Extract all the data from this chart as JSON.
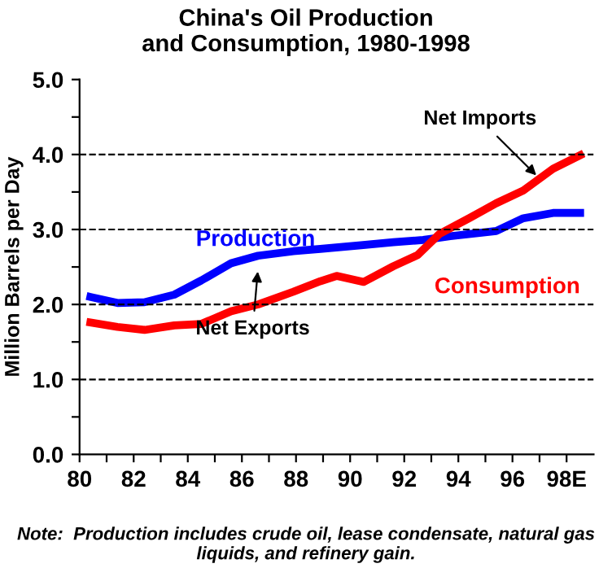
{
  "chart_data": {
    "type": "line",
    "title": "China's Oil Production\nand Consumption, 1980-1998",
    "ylabel": "Million Barrels per Day",
    "series": [
      {
        "name": "Production",
        "color": "#0000ff",
        "x": [
          80.4,
          81.4,
          82.4,
          83.5,
          84.5,
          85.6,
          86.6,
          87.9,
          88.9,
          90.4,
          91.6,
          92.7,
          93.7,
          95.4,
          96.4,
          97.5,
          98.5
        ],
        "values": [
          2.1,
          2.02,
          2.03,
          2.13,
          2.32,
          2.55,
          2.65,
          2.71,
          2.74,
          2.79,
          2.83,
          2.86,
          2.91,
          2.98,
          3.15,
          3.22,
          3.22
        ]
      },
      {
        "name": "Consumption",
        "color": "#ff0000",
        "x": [
          80.4,
          81.4,
          82.4,
          83.5,
          84.5,
          85.6,
          86.6,
          87.9,
          88.9,
          89.5,
          90.5,
          91.6,
          92.5,
          93.3,
          94.4,
          95.4,
          96.4,
          97.5,
          98.5
        ],
        "values": [
          1.76,
          1.7,
          1.66,
          1.72,
          1.74,
          1.91,
          2.0,
          2.17,
          2.31,
          2.38,
          2.3,
          2.51,
          2.66,
          2.94,
          3.15,
          3.35,
          3.52,
          3.81,
          3.99
        ]
      }
    ],
    "xlim": [
      80,
      99
    ],
    "xticks": [
      80,
      {
        "value": 81,
        "label": null
      },
      82,
      {
        "value": 83,
        "label": null
      },
      84,
      {
        "value": 85,
        "label": null
      },
      86,
      {
        "value": 87,
        "label": null
      },
      88,
      {
        "value": 89,
        "label": null
      },
      90,
      {
        "value": 91,
        "label": null
      },
      92,
      {
        "value": 93,
        "label": null
      },
      94,
      {
        "value": 95,
        "label": null
      },
      96,
      {
        "value": 97,
        "label": null
      },
      {
        "value": 98,
        "label": "98E"
      }
    ],
    "ylim": [
      0,
      5
    ],
    "yticks": [
      {
        "value": 0,
        "label": "0.0"
      },
      {
        "value": 0.5,
        "label": null
      },
      {
        "value": 1,
        "label": "1.0"
      },
      {
        "value": 1.5,
        "label": null
      },
      {
        "value": 2,
        "label": "2.0"
      },
      {
        "value": 2.5,
        "label": null
      },
      {
        "value": 3,
        "label": "3.0"
      },
      {
        "value": 3.5,
        "label": null
      },
      {
        "value": 4,
        "label": "4.0"
      },
      {
        "value": 4.5,
        "label": null
      },
      {
        "value": 5,
        "label": "5.0"
      }
    ],
    "ref_lines": [
      {
        "axis": "y",
        "value": 1,
        "line_style": "dashed",
        "color": "#000000"
      },
      {
        "axis": "y",
        "value": 2,
        "line_style": "dashed",
        "color": "#000000"
      },
      {
        "axis": "y",
        "value": 3,
        "line_style": "dashed",
        "color": "#000000"
      },
      {
        "axis": "y",
        "value": 4,
        "line_style": "dashed",
        "color": "#000000"
      }
    ],
    "annotations": [
      {
        "text": "Net Exports",
        "x": 86.6,
        "y": 2.5
      },
      {
        "text": "Net Imports",
        "x": 97,
        "y": 3.68
      },
      "Note:  Production includes crude oil, lease condensate, natural gas liquids, and refinery gain."
    ],
    "grid": false,
    "legend": false,
    "marker": "none",
    "line_style": "solid"
  }
}
